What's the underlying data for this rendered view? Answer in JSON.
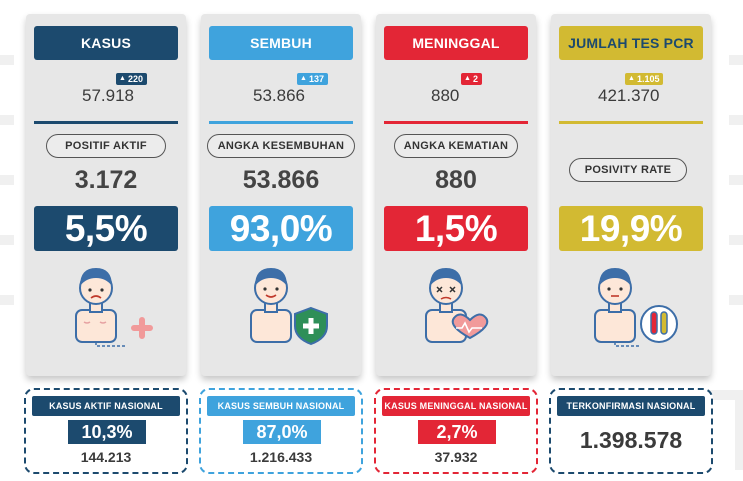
{
  "colors": {
    "kasus": "#1c4a6e",
    "sembuh": "#3fa3dd",
    "meninggal": "#e32636",
    "pcr": "#d2ba32",
    "card_bg": "#e7e7e7"
  },
  "cards": [
    {
      "header": "KASUS",
      "delta": "220",
      "total": "57.918",
      "metric_label": "POSITIF AKTIF",
      "metric_value": "3.172",
      "percent": "5,5%",
      "icon": "sick-person-icon"
    },
    {
      "header": "SEMBUH",
      "delta": "137",
      "total": "53.866",
      "metric_label": "ANGKA KESEMBUHAN",
      "metric_value": "53.866",
      "percent": "93,0%",
      "icon": "healthy-person-shield-icon"
    },
    {
      "header": "MENINGGAL",
      "delta": "2",
      "total": "880",
      "metric_label": "ANGKA KEMATIAN",
      "metric_value": "880",
      "percent": "1,5%",
      "icon": "deceased-person-heart-icon"
    },
    {
      "header": "JUMLAH TES PCR",
      "delta": "1.105",
      "total": "421.370",
      "metric_label": "POSIVITY RATE",
      "metric_value": "",
      "percent": "19,9%",
      "icon": "person-test-tube-icon"
    }
  ],
  "national": [
    {
      "label": "KASUS AKTIF NASIONAL",
      "percent": "10,3%",
      "value": "144.213"
    },
    {
      "label": "KASUS SEMBUH NASIONAL",
      "percent": "87,0%",
      "value": "1.216.433"
    },
    {
      "label": "KASUS MENINGGAL NASIONAL",
      "percent": "2,7%",
      "value": "37.932"
    },
    {
      "label": "TERKONFIRMASI NASIONAL",
      "value": "1.398.578"
    }
  ]
}
